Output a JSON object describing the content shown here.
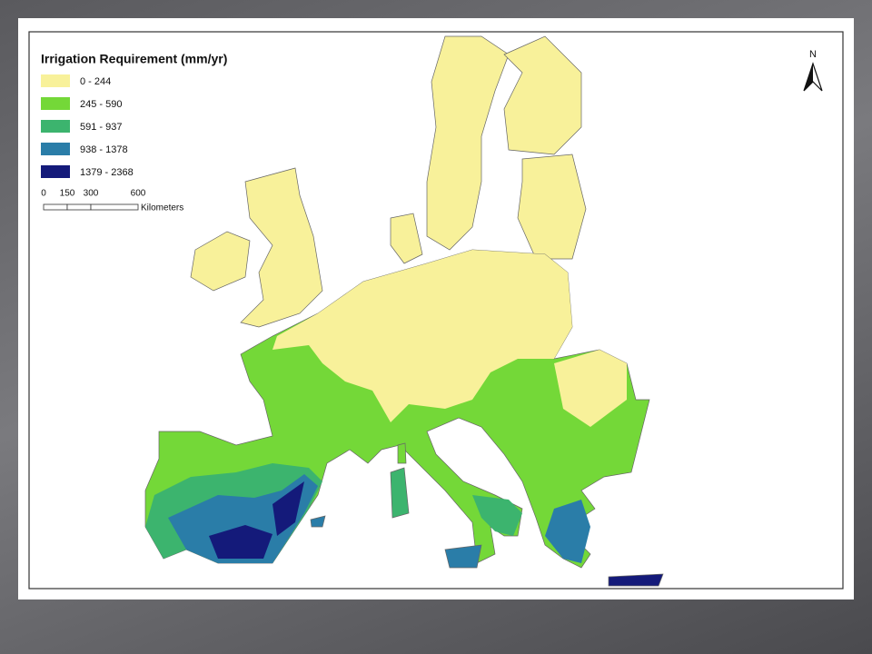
{
  "legend": {
    "title": "Irrigation Requirement (mm/yr)",
    "items": [
      {
        "label": "0 - 244",
        "color": "#f8f19a"
      },
      {
        "label": "245 - 590",
        "color": "#74d838"
      },
      {
        "label": "591 - 937",
        "color": "#3cb46e"
      },
      {
        "label": "938 - 1378",
        "color": "#2a7da8"
      },
      {
        "label": "1379 - 2368",
        "color": "#141a7a"
      }
    ]
  },
  "scale_bar": {
    "ticks": [
      "0",
      "150",
      "300",
      "600"
    ],
    "unit": "Kilometers"
  },
  "north_arrow": "N"
}
